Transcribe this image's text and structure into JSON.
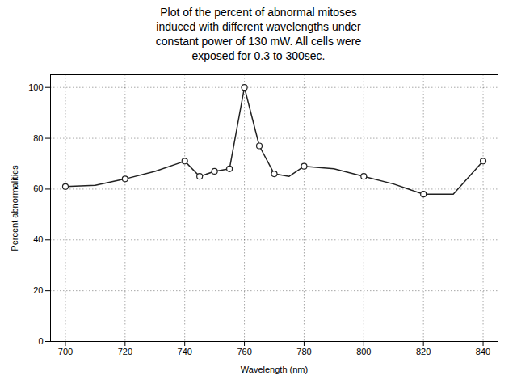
{
  "chart_data": {
    "type": "line",
    "title": "Plot of the percent of abnormal mitoses\ninduced with different wavelengths under\nconstant power of 130 mW. All cells were\nexposed for 0.3 to 300sec.",
    "x_label": "Wavelength (nm)",
    "y_label": "Percent abnormalities",
    "xlim": [
      695,
      845
    ],
    "ylim": [
      0,
      105
    ],
    "xticks": [
      700,
      720,
      740,
      760,
      780,
      800,
      820,
      840
    ],
    "yticks": [
      0,
      20,
      40,
      60,
      80,
      100
    ],
    "grid": true,
    "series": [
      {
        "type": "line",
        "color": "#222222",
        "line_style": "solid",
        "x": [
          700,
          710,
          720,
          730,
          740,
          745,
          750,
          755,
          760,
          765,
          770,
          775,
          780,
          790,
          800,
          810,
          820,
          830,
          840
        ],
        "values": [
          61,
          61.5,
          64,
          67,
          71,
          65,
          67,
          68,
          100,
          77,
          66,
          65,
          69,
          68,
          65,
          62,
          58,
          58,
          71
        ]
      },
      {
        "type": "scatter",
        "color": "#222222",
        "marker": "hollow_circle",
        "x": [
          700,
          720,
          740,
          745,
          750,
          755,
          760,
          765,
          770,
          780,
          800,
          820,
          840
        ],
        "values": [
          61,
          64,
          71,
          65,
          67,
          68,
          100,
          77,
          66,
          69,
          65,
          58,
          71
        ]
      }
    ]
  }
}
